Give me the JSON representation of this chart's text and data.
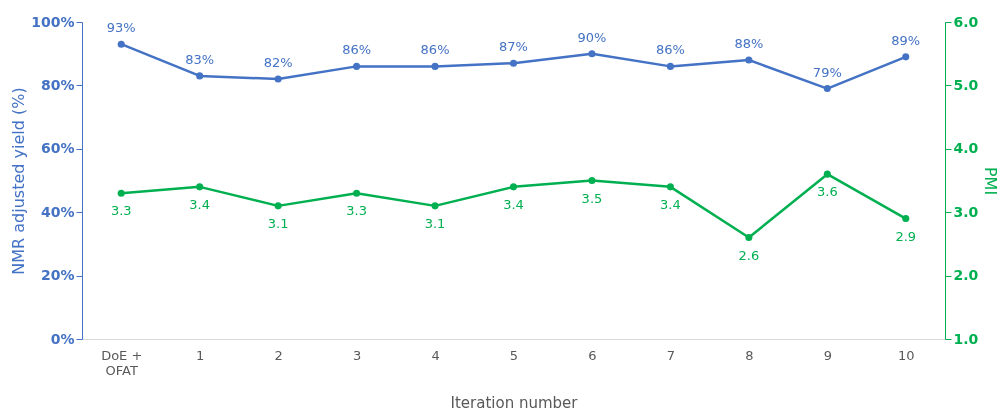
{
  "chart_data": {
    "type": "line",
    "categories": [
      "DoE + OFAT",
      "1",
      "2",
      "3",
      "4",
      "5",
      "6",
      "7",
      "8",
      "9",
      "10"
    ],
    "xlabel": "Iteration number",
    "ylabel": "NMR adjusted yield (%)",
    "y2label": "PMI",
    "series": [
      {
        "name": null,
        "color": "#4472c4",
        "values": [
          93,
          83,
          82,
          86,
          86,
          87,
          90,
          86,
          88,
          79,
          89
        ],
        "value_labels": [
          "93%",
          "83%",
          "82%",
          "86%",
          "86%",
          "87%",
          "90%",
          "86%",
          "88%",
          "79%",
          "89%"
        ]
      },
      {
        "name": null,
        "color": "#00b050",
        "axis": "y2",
        "values": [
          3.3,
          3.4,
          3.1,
          3.3,
          3.1,
          3.4,
          3.5,
          3.4,
          2.6,
          3.6,
          2.9
        ],
        "value_labels": [
          "3.3",
          "3.4",
          "3.1",
          "3.3",
          "3.1",
          "3.4",
          "3.5",
          "3.4",
          "2.6",
          "3.6",
          "2.9"
        ]
      }
    ],
    "ylim": [
      0,
      100
    ],
    "yticks": [
      {
        "value": 0,
        "label": "0%"
      },
      {
        "value": 20,
        "label": "20%"
      },
      {
        "value": 40,
        "label": "40%"
      },
      {
        "value": 60,
        "label": "60%"
      },
      {
        "value": 80,
        "label": "80%"
      },
      {
        "value": 100,
        "label": "100%"
      }
    ],
    "y2lim": [
      1,
      6
    ],
    "y2ticks": [
      {
        "value": 1,
        "label": "1.0"
      },
      {
        "value": 2,
        "label": "2.0"
      },
      {
        "value": 3,
        "label": "3.0"
      },
      {
        "value": 4,
        "label": "4.0"
      },
      {
        "value": 5,
        "label": "5.0"
      },
      {
        "value": 6,
        "label": "6.0"
      }
    ],
    "grid": false,
    "marker": "circle",
    "line_style": "solid"
  }
}
